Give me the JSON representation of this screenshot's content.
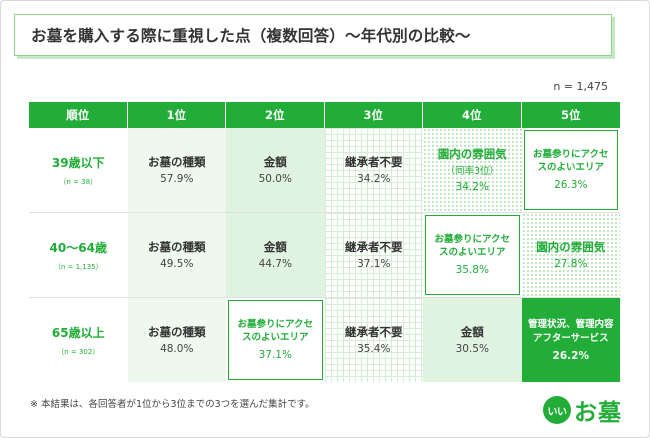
{
  "title": "お墓を購入する際に重視した点（複数回答）～年代別の比較～",
  "sample_size": "n = 1,475",
  "footnote": "※ 本結果は、各回答者が1位から3位までの3つを選んだ集計です。",
  "logo": {
    "mark": "いい",
    "text": "お墓"
  },
  "colors": {
    "brand_green": "#22ac38",
    "light_green": "#e0f2e0"
  },
  "chart_data": {
    "type": "table",
    "columns": [
      "順位",
      "1位",
      "2位",
      "3位",
      "4位",
      "5位"
    ],
    "rows": [
      {
        "age": "39歳以下",
        "n": "（n = 38）",
        "items": [
          {
            "name": "お墓の種類",
            "value": "57.9%"
          },
          {
            "name": "金額",
            "value": "50.0%"
          },
          {
            "name": "継承者不要",
            "value": "34.2%"
          },
          {
            "name": "園内の雰囲気",
            "note": "（同率3位）",
            "value": "34.2%"
          },
          {
            "name": "お墓参りにアクセスのよいエリア",
            "value": "26.3%"
          }
        ]
      },
      {
        "age": "40～64歳",
        "n": "（n = 1,135）",
        "items": [
          {
            "name": "お墓の種類",
            "value": "49.5%"
          },
          {
            "name": "金額",
            "value": "44.7%"
          },
          {
            "name": "継承者不要",
            "value": "37.1%"
          },
          {
            "name": "お墓参りにアクセスのよいエリア",
            "value": "35.8%"
          },
          {
            "name": "園内の雰囲気",
            "value": "27.8%"
          }
        ]
      },
      {
        "age": "65歳以上",
        "n": "（n = 302）",
        "items": [
          {
            "name": "お墓の種類",
            "value": "48.0%"
          },
          {
            "name": "お墓参りにアクセスのよいエリア",
            "value": "37.1%"
          },
          {
            "name": "継承者不要",
            "value": "35.4%"
          },
          {
            "name": "金額",
            "value": "30.5%"
          },
          {
            "name": "管理状況、管理内容アフターサービス",
            "value": "26.2%"
          }
        ]
      }
    ]
  }
}
